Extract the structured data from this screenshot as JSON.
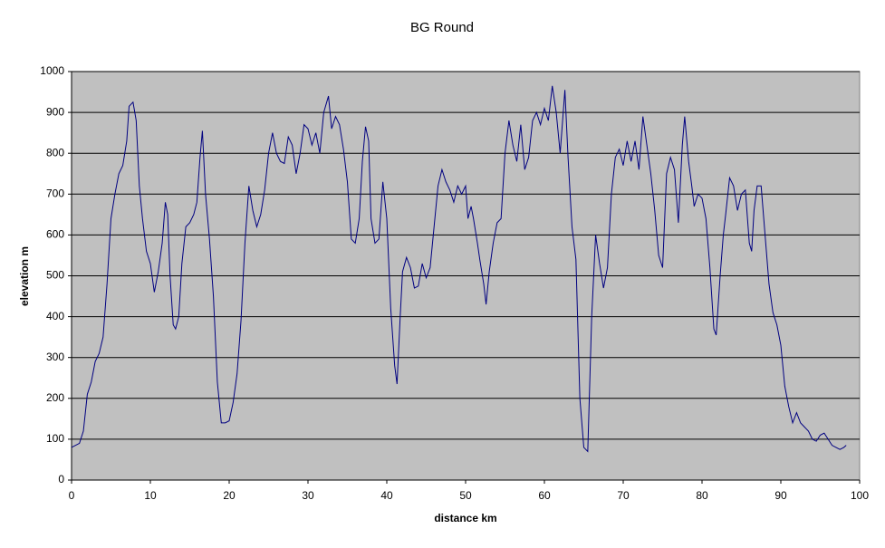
{
  "chart_data": {
    "type": "line",
    "title": "BG Round",
    "xlabel": "distance km",
    "ylabel": "elevation m",
    "x": [
      0,
      1,
      1.5,
      2,
      2.5,
      3,
      3.5,
      4,
      4.5,
      5,
      5.5,
      6,
      6.5,
      7,
      7.3,
      7.8,
      8.2,
      8.6,
      9,
      9.5,
      10,
      10.5,
      11,
      11.5,
      11.9,
      12.2,
      12.5,
      12.9,
      13.2,
      13.6,
      14,
      14.5,
      15,
      15.5,
      15.9,
      16.3,
      16.6,
      17,
      17.5,
      18,
      18.5,
      19,
      19.5,
      20,
      20.5,
      21,
      21.5,
      22,
      22.5,
      23,
      23.5,
      24,
      24.5,
      25,
      25.5,
      26,
      26.5,
      27,
      27.5,
      28,
      28.5,
      29,
      29.5,
      30,
      30.5,
      31,
      31.5,
      32,
      32.6,
      33,
      33.5,
      34,
      34.5,
      35,
      35.5,
      36,
      36.5,
      36.9,
      37.3,
      37.7,
      38,
      38.5,
      39,
      39.5,
      40,
      40.5,
      41,
      41.3,
      41.7,
      42,
      42.5,
      43,
      43.5,
      44,
      44.5,
      45,
      45.5,
      46,
      46.5,
      47,
      47.5,
      48,
      48.5,
      49,
      49.5,
      50,
      50.3,
      50.7,
      51,
      51.5,
      51.8,
      52.3,
      52.6,
      53,
      53.5,
      54,
      54.5,
      55,
      55.5,
      56,
      56.5,
      57,
      57.5,
      58,
      58.5,
      59,
      59.5,
      60,
      60.5,
      61,
      61.5,
      62,
      62.6,
      63,
      63.5,
      64,
      64.5,
      65,
      65.5,
      66,
      66.5,
      67,
      67.5,
      68,
      68.5,
      69,
      69.5,
      70,
      70.5,
      71,
      71.5,
      72,
      72.5,
      73,
      73.5,
      74,
      74.5,
      75,
      75.5,
      76,
      76.5,
      77,
      77.5,
      77.8,
      78.3,
      78.7,
      79,
      79.5,
      80,
      80.5,
      81,
      81.5,
      81.8,
      82.3,
      82.7,
      83,
      83.5,
      84,
      84.5,
      85,
      85.5,
      86,
      86.3,
      86.6,
      87,
      87.5,
      88,
      88.5,
      89,
      89.5,
      90,
      90.5,
      91,
      91.5,
      92,
      92.5,
      93,
      93.5,
      94,
      94.5,
      95,
      95.5,
      96,
      96.5,
      97,
      97.5,
      98,
      98.3
    ],
    "series": [
      {
        "name": "elevation",
        "color": "#000080",
        "values": [
          80,
          90,
          120,
          210,
          240,
          290,
          310,
          350,
          480,
          640,
          700,
          750,
          770,
          830,
          915,
          925,
          880,
          720,
          640,
          560,
          530,
          460,
          510,
          580,
          680,
          650,
          500,
          380,
          370,
          400,
          530,
          620,
          630,
          650,
          680,
          790,
          855,
          700,
          590,
          450,
          240,
          140,
          140,
          145,
          190,
          260,
          390,
          580,
          720,
          660,
          620,
          650,
          710,
          800,
          850,
          800,
          780,
          775,
          840,
          820,
          750,
          800,
          870,
          860,
          820,
          850,
          800,
          900,
          940,
          860,
          890,
          870,
          810,
          730,
          590,
          580,
          640,
          780,
          865,
          830,
          640,
          580,
          590,
          730,
          640,
          420,
          280,
          235,
          400,
          510,
          545,
          520,
          470,
          475,
          530,
          495,
          520,
          620,
          720,
          760,
          730,
          710,
          680,
          720,
          700,
          720,
          640,
          670,
          640,
          580,
          540,
          480,
          430,
          510,
          580,
          630,
          640,
          800,
          880,
          820,
          780,
          870,
          760,
          790,
          880,
          900,
          870,
          910,
          880,
          965,
          900,
          800,
          955,
          790,
          620,
          540,
          200,
          80,
          70,
          400,
          600,
          530,
          470,
          520,
          700,
          790,
          810,
          770,
          830,
          780,
          830,
          760,
          890,
          820,
          750,
          660,
          550,
          520,
          750,
          790,
          760,
          630,
          820,
          890,
          780,
          720,
          670,
          700,
          690,
          640,
          520,
          370,
          355,
          500,
          600,
          650,
          740,
          720,
          660,
          700,
          710,
          580,
          560,
          660,
          720,
          720,
          600,
          480,
          410,
          380,
          330,
          230,
          180,
          140,
          165,
          140,
          130,
          120,
          100,
          95,
          110,
          115,
          100,
          85,
          80,
          75,
          80,
          85
        ]
      }
    ],
    "xlim": [
      0,
      100
    ],
    "xticks": [
      0,
      10,
      20,
      30,
      40,
      50,
      60,
      70,
      80,
      90,
      100
    ],
    "ylim": [
      0,
      1000
    ],
    "yticks": [
      0,
      100,
      200,
      300,
      400,
      500,
      600,
      700,
      800,
      900,
      1000
    ],
    "grid": true,
    "plot_background": "#c0c0c0"
  }
}
